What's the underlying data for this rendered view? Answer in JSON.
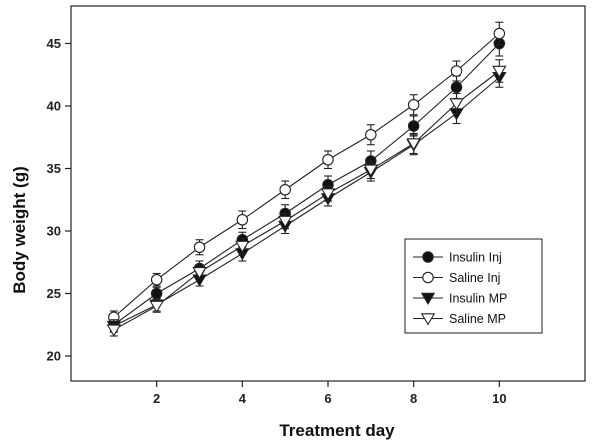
{
  "chart_data": {
    "type": "line",
    "title": "",
    "xlabel": "Treatment day",
    "ylabel": "Body weight (g)",
    "xlim": [
      0,
      12
    ],
    "ylim": [
      18,
      48
    ],
    "xticks": [
      2,
      4,
      6,
      8,
      10
    ],
    "yticks": [
      20,
      25,
      30,
      35,
      40,
      45
    ],
    "grid": false,
    "legend_position": "lower-right",
    "x": [
      1,
      2,
      3,
      4,
      5,
      6,
      7,
      8,
      9,
      10
    ],
    "series": [
      {
        "name": "Insulin Inj",
        "marker": "filled-circle",
        "values": [
          22.5,
          25.0,
          27.0,
          29.3,
          31.4,
          33.7,
          35.6,
          38.4,
          41.5,
          45.0
        ],
        "errors": [
          0.5,
          0.5,
          0.6,
          0.6,
          0.7,
          0.7,
          0.8,
          0.8,
          0.9,
          1.0
        ]
      },
      {
        "name": "Saline Inj",
        "marker": "open-circle",
        "values": [
          23.1,
          26.1,
          28.7,
          30.9,
          33.3,
          35.7,
          37.7,
          40.1,
          42.8,
          45.8
        ],
        "errors": [
          0.5,
          0.5,
          0.6,
          0.7,
          0.7,
          0.7,
          0.8,
          0.8,
          0.8,
          0.9
        ]
      },
      {
        "name": "Insulin MP",
        "marker": "filled-triangle-down",
        "values": [
          22.4,
          24.1,
          26.1,
          28.2,
          30.4,
          32.6,
          34.7,
          36.9,
          39.4,
          42.3
        ],
        "errors": [
          0.5,
          0.5,
          0.5,
          0.6,
          0.6,
          0.6,
          0.7,
          0.8,
          0.8,
          0.8
        ]
      },
      {
        "name": "Saline MP",
        "marker": "open-triangle-down",
        "values": [
          22.1,
          24.0,
          26.7,
          28.8,
          30.8,
          33.0,
          34.9,
          37.0,
          40.2,
          42.8
        ],
        "errors": [
          0.5,
          0.5,
          0.5,
          0.6,
          0.6,
          0.6,
          0.7,
          0.8,
          0.8,
          0.9
        ]
      }
    ]
  },
  "colors": {
    "line": "#222222",
    "marker_fill": "#111111",
    "background": "#ffffff"
  }
}
